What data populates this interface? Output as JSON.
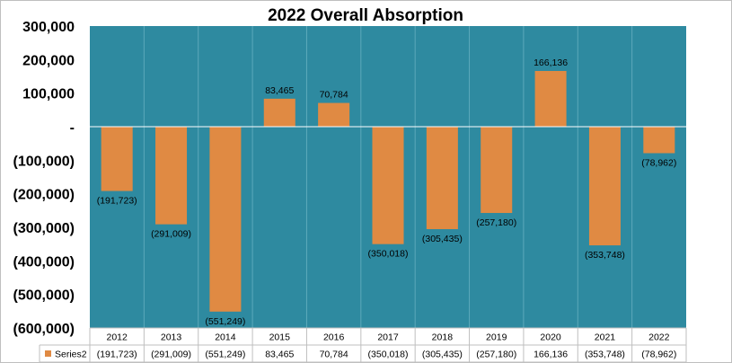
{
  "colors": {
    "plot_background": "#2e8aa0",
    "bar": "#e08a43",
    "zero_line": "#ffffff",
    "gridline": "#5ca9bb"
  },
  "chart_data": {
    "type": "bar",
    "title": "2022 Overall Absorption",
    "categories": [
      "2012",
      "2013",
      "2014",
      "2015",
      "2016",
      "2017",
      "2018",
      "2019",
      "2020",
      "2021",
      "2022"
    ],
    "series": [
      {
        "name": "Series2",
        "values": [
          -191723,
          -291009,
          -551249,
          83465,
          70784,
          -350018,
          -305435,
          -257180,
          166136,
          -353748,
          -78962
        ],
        "labels": [
          "(191,723)",
          "(291,009)",
          "(551,249)",
          "83,465",
          "70,784",
          "(350,018)",
          "(305,435)",
          "(257,180)",
          "166,136",
          "(353,748)",
          "(78,962)"
        ]
      }
    ],
    "ylim": [
      -600000,
      300000
    ],
    "yticks": [
      300000,
      200000,
      100000,
      0,
      -100000,
      -200000,
      -300000,
      -400000,
      -500000,
      -600000
    ],
    "ytick_labels": [
      "300,000",
      "200,000",
      "100,000",
      "-",
      "(100,000)",
      "(200,000)",
      "(300,000)",
      "(400,000)",
      "(500,000)",
      "(600,000)"
    ],
    "data_table": true,
    "legend": "data-table"
  }
}
